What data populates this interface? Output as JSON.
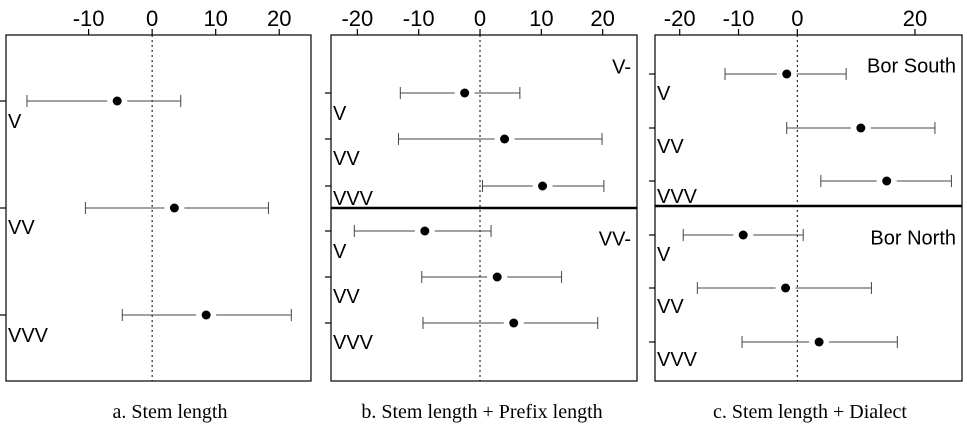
{
  "chart_data": [
    {
      "type": "dot-whisker",
      "caption": "a. Stem length",
      "xticks": [
        -10,
        0,
        10,
        20
      ],
      "xlim": [
        -23,
        25
      ],
      "reference_line": 0,
      "groups": [
        {
          "label": "",
          "rows": [
            {
              "label": "V",
              "estimate": -5.5,
              "lower": -19.7,
              "upper": 4.5
            },
            {
              "label": "VV",
              "estimate": 3.5,
              "lower": -10.5,
              "upper": 18.3
            },
            {
              "label": "VVV",
              "estimate": 8.5,
              "lower": -4.7,
              "upper": 21.9
            }
          ]
        }
      ]
    },
    {
      "type": "dot-whisker",
      "caption": "b. Stem length + Prefix length",
      "xticks": [
        -20,
        -10,
        0,
        10,
        20
      ],
      "xlim": [
        -24.3,
        25.6
      ],
      "reference_line": 0,
      "groups": [
        {
          "label": "V-",
          "rows": [
            {
              "label": "V",
              "estimate": -2.5,
              "lower": -13.0,
              "upper": 6.5
            },
            {
              "label": "VV",
              "estimate": 4.0,
              "lower": -13.3,
              "upper": 19.9
            },
            {
              "label": "VVV",
              "estimate": 10.2,
              "lower": 0.4,
              "upper": 20.2
            }
          ]
        },
        {
          "label": "VV-",
          "rows": [
            {
              "label": "V",
              "estimate": -9.0,
              "lower": -20.5,
              "upper": 1.8
            },
            {
              "label": "VV",
              "estimate": 2.8,
              "lower": -9.5,
              "upper": 13.3
            },
            {
              "label": "VVV",
              "estimate": 5.5,
              "lower": -9.3,
              "upper": 19.2
            }
          ]
        }
      ]
    },
    {
      "type": "dot-whisker",
      "caption": "c. Stem length + Dialect",
      "xticks": [
        -20,
        -10,
        0,
        20
      ],
      "xlim": [
        -24.2,
        28.0
      ],
      "reference_line": 0,
      "groups": [
        {
          "label": "Bor South",
          "rows": [
            {
              "label": "V",
              "estimate": -1.8,
              "lower": -12.3,
              "upper": 8.3
            },
            {
              "label": "VV",
              "estimate": 10.8,
              "lower": -1.8,
              "upper": 23.4
            },
            {
              "label": "VVV",
              "estimate": 15.2,
              "lower": 4.0,
              "upper": 26.2
            }
          ]
        },
        {
          "label": "Bor North",
          "rows": [
            {
              "label": "V",
              "estimate": -9.2,
              "lower": -19.4,
              "upper": 1.0
            },
            {
              "label": "VV",
              "estimate": -2.0,
              "lower": -17.0,
              "upper": 12.6
            },
            {
              "label": "VVV",
              "estimate": 3.7,
              "lower": -9.4,
              "upper": 17.0
            }
          ]
        }
      ]
    }
  ]
}
